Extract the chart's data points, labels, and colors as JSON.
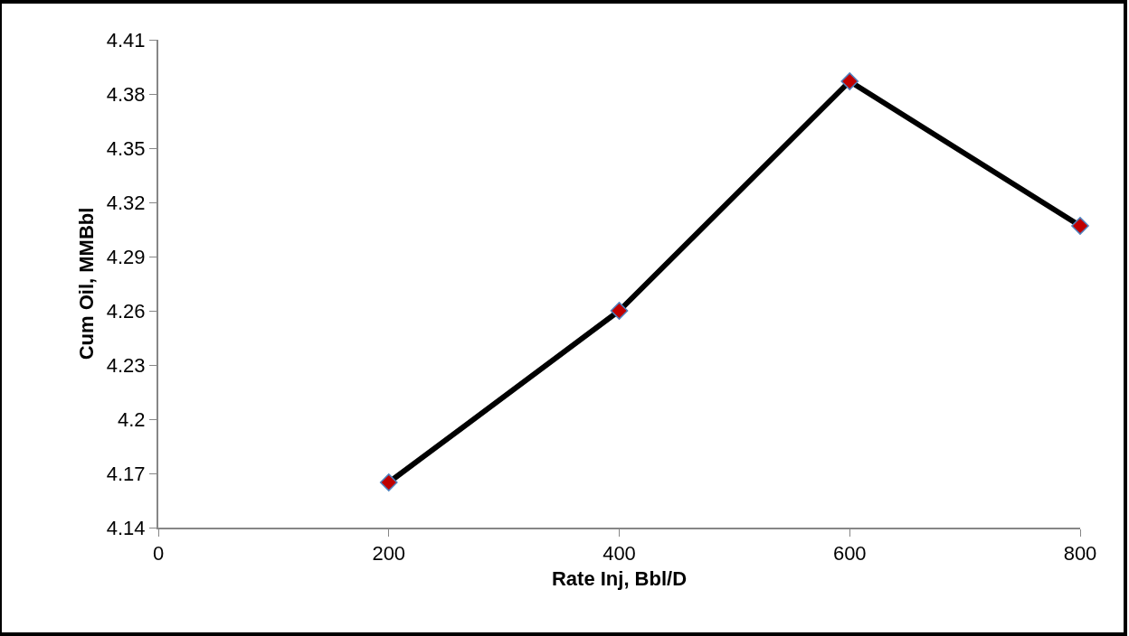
{
  "chart_data": {
    "type": "line",
    "xlabel": "Rate Inj, Bbl/D",
    "ylabel": "Cum Oil, MMBbl",
    "x": [
      200,
      400,
      600,
      800
    ],
    "series": [
      {
        "color": "#000000",
        "values": [
          4.165,
          4.26,
          4.387,
          4.307
        ]
      }
    ],
    "xlim": [
      0,
      800
    ],
    "xticks": [
      0,
      200,
      400,
      600,
      800
    ],
    "ylim": [
      4.14,
      4.41
    ],
    "yticks": [
      4.14,
      4.17,
      4.2,
      4.23,
      4.26,
      4.29,
      4.32,
      4.35,
      4.38,
      4.41
    ],
    "legend": false,
    "marker": "diamond",
    "line_style": "solid"
  }
}
